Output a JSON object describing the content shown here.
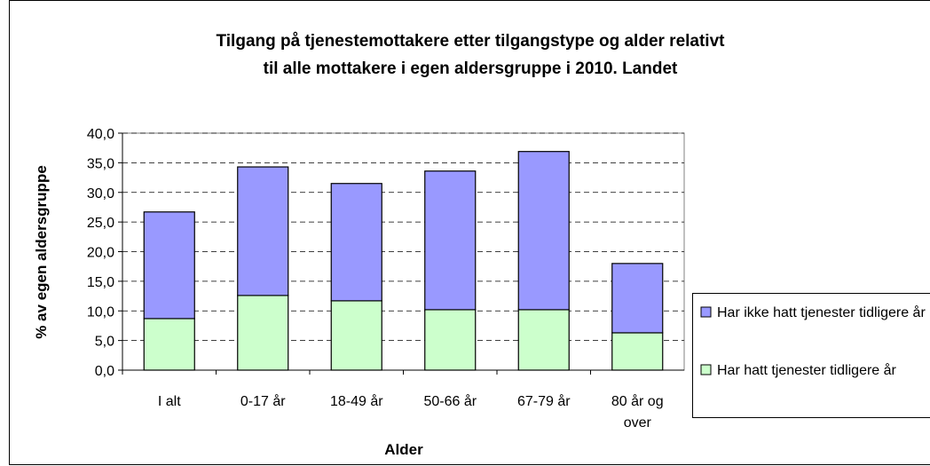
{
  "chart_data": {
    "type": "stacked-bar",
    "title": [
      "Tilgang på tjenestemottakere etter tilgangstype og alder relativt",
      "til alle mottakere i egen aldersgruppe i 2010. Landet"
    ],
    "x_label": "Alder",
    "y_label": "% av egen aldersgruppe",
    "categories": [
      "I alt",
      "0-17 år",
      "18-49 år",
      "50-66 år",
      "67-79 år",
      "80 år og over"
    ],
    "series": [
      {
        "name": "Har hatt tjenester tidligere år",
        "color": "#ccffcc",
        "values": [
          8.7,
          12.6,
          11.7,
          10.2,
          10.2,
          6.3
        ]
      },
      {
        "name": "Har ikke hatt tjenester tidligere år",
        "color": "#9999ff",
        "values": [
          18.0,
          21.7,
          19.8,
          23.4,
          26.7,
          11.7
        ]
      }
    ],
    "ylim": [
      0,
      40
    ],
    "yticks": [
      {
        "value": 0,
        "label": "0,0"
      },
      {
        "value": 5,
        "label": "5,0"
      },
      {
        "value": 10,
        "label": "10,0"
      },
      {
        "value": 15,
        "label": "15,0"
      },
      {
        "value": 20,
        "label": "20,0"
      },
      {
        "value": 25,
        "label": "25,0"
      },
      {
        "value": 30,
        "label": "30,0"
      },
      {
        "value": 35,
        "label": "35,0"
      },
      {
        "value": 40,
        "label": "40,0"
      }
    ],
    "grid": true,
    "legend": "right"
  }
}
